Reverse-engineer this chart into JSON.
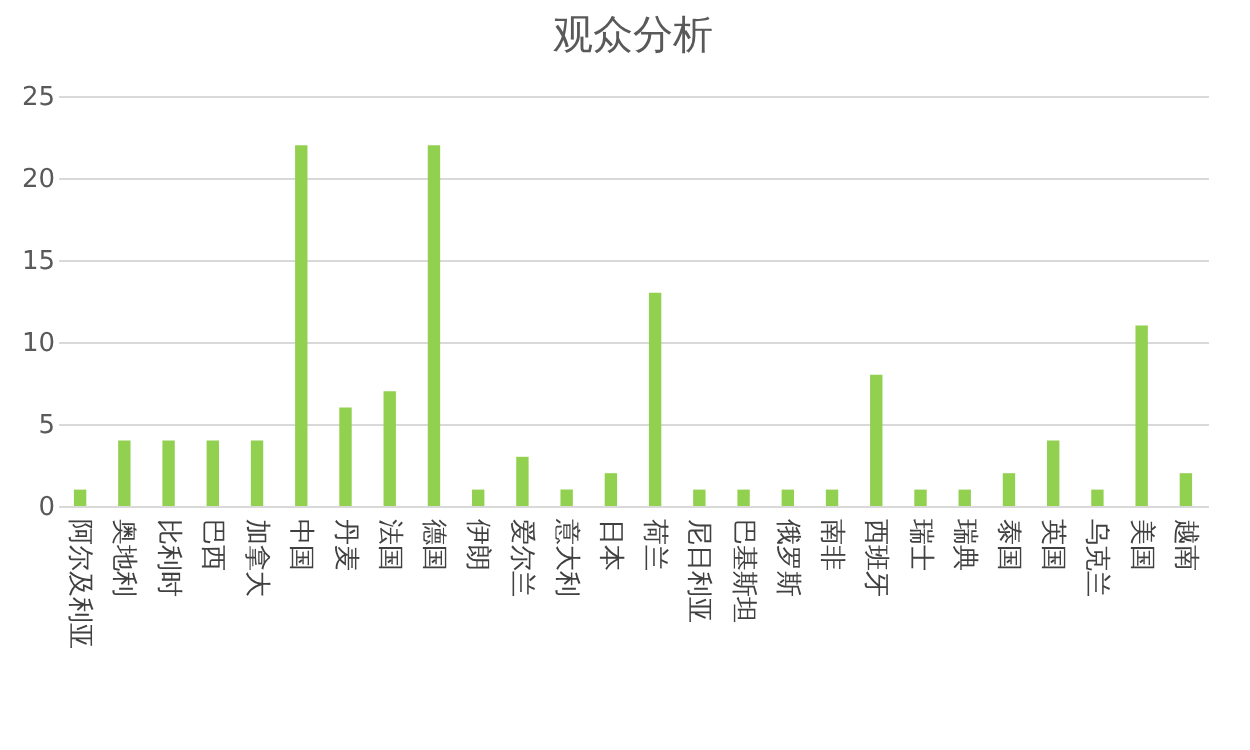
{
  "chart_data": {
    "type": "bar",
    "title": "观众分析",
    "categories": [
      "阿尔及利亚",
      "奥地利",
      "比利时",
      "巴西",
      "加拿大",
      "中国",
      "丹麦",
      "法国",
      "德国",
      "伊朗",
      "爱尔兰",
      "意大利",
      "日本",
      "荷兰",
      "尼日利亚",
      "巴基斯坦",
      "俄罗斯",
      "南非",
      "西班牙",
      "瑞士",
      "瑞典",
      "泰国",
      "英国",
      "乌克兰",
      "美国",
      "越南"
    ],
    "values": [
      1,
      4,
      4,
      4,
      4,
      22,
      6,
      7,
      22,
      1,
      3,
      1,
      2,
      13,
      1,
      1,
      1,
      1,
      8,
      1,
      1,
      2,
      4,
      1,
      11,
      2
    ],
    "color": "#92d050",
    "ylim": [
      0,
      25
    ],
    "yticks": [
      0,
      5,
      10,
      15,
      20,
      25
    ],
    "grid": "y"
  }
}
